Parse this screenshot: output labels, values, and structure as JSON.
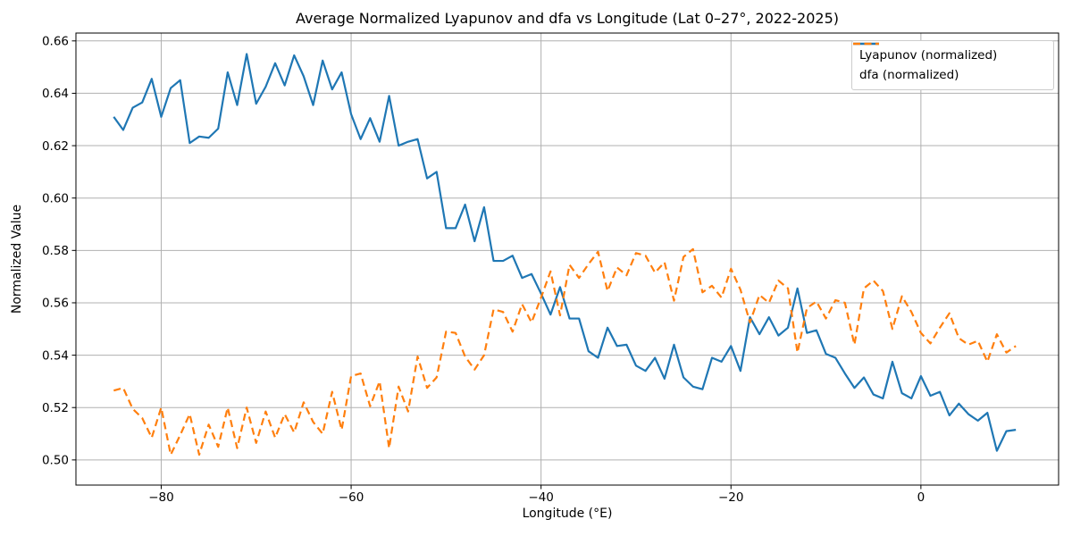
{
  "chart_data": {
    "type": "line",
    "title": "Average Normalized Lyapunov and dfa vs Longitude (Lat 0–27°, 2022-2025)",
    "xlabel": "Longitude (°E)",
    "ylabel": "Normalized Value",
    "grid": true,
    "legend_position": "upper right",
    "xlim": [
      -88.98,
      14.5
    ],
    "ylim": [
      0.4904,
      0.663
    ],
    "xticks": {
      "values": [
        -80,
        -60,
        -40,
        -20,
        0
      ],
      "labels": [
        "−80",
        "−60",
        "−40",
        "−20",
        "0"
      ]
    },
    "yticks": {
      "values": [
        0.5,
        0.52,
        0.54,
        0.56,
        0.58,
        0.6,
        0.62,
        0.64,
        0.66
      ],
      "labels": [
        "0.50",
        "0.52",
        "0.54",
        "0.56",
        "0.58",
        "0.60",
        "0.62",
        "0.64",
        "0.66"
      ]
    },
    "x": [
      -85,
      -84,
      -83,
      -82,
      -81,
      -80,
      -79,
      -78,
      -77,
      -76,
      -75,
      -74,
      -73,
      -72,
      -71,
      -70,
      -69,
      -68,
      -67,
      -66,
      -65,
      -64,
      -63,
      -62,
      -61,
      -60,
      -59,
      -58,
      -57,
      -56,
      -55,
      -54,
      -53,
      -52,
      -51,
      -50,
      -49,
      -48,
      -47,
      -46,
      -45,
      -44,
      -43,
      -42,
      -41,
      -40,
      -39,
      -38,
      -37,
      -36,
      -35,
      -34,
      -33,
      -32,
      -31,
      -30,
      -29,
      -28,
      -27,
      -26,
      -25,
      -24,
      -23,
      -22,
      -21,
      -20,
      -19,
      -18,
      -17,
      -16,
      -15,
      -14,
      -13,
      -12,
      -11,
      -10,
      -9,
      -8,
      -7,
      -6,
      -5,
      -4,
      -3,
      -2,
      -1,
      0,
      1,
      2,
      3,
      4,
      5,
      6,
      7,
      8,
      9,
      10
    ],
    "series": [
      {
        "name": "Lyapunov (normalized)",
        "color": "#1f77b4",
        "style": "solid",
        "values": [
          0.631,
          0.626,
          0.6345,
          0.6365,
          0.6455,
          0.631,
          0.642,
          0.645,
          0.621,
          0.6235,
          0.623,
          0.6265,
          0.648,
          0.6355,
          0.655,
          0.636,
          0.6425,
          0.6515,
          0.643,
          0.6545,
          0.6465,
          0.6355,
          0.6525,
          0.6415,
          0.648,
          0.632,
          0.6225,
          0.6305,
          0.6215,
          0.639,
          0.62,
          0.6215,
          0.6225,
          0.6075,
          0.61,
          0.5885,
          0.5885,
          0.5975,
          0.5835,
          0.5965,
          0.576,
          0.576,
          0.578,
          0.5695,
          0.571,
          0.5635,
          0.5555,
          0.566,
          0.554,
          0.554,
          0.5415,
          0.539,
          0.5505,
          0.5435,
          0.544,
          0.536,
          0.534,
          0.539,
          0.531,
          0.544,
          0.5315,
          0.528,
          0.527,
          0.539,
          0.5375,
          0.5435,
          0.534,
          0.5545,
          0.548,
          0.5545,
          0.5475,
          0.5505,
          0.5655,
          0.5485,
          0.5495,
          0.5405,
          0.539,
          0.533,
          0.5275,
          0.5315,
          0.525,
          0.5235,
          0.5375,
          0.5255,
          0.5235,
          0.532,
          0.5245,
          0.526,
          0.517,
          0.5215,
          0.5175,
          0.515,
          0.518,
          0.5035,
          0.511,
          0.5115
        ]
      },
      {
        "name": "dfa (normalized)",
        "color": "#ff7f0e",
        "style": "dashed",
        "values": [
          0.5265,
          0.5275,
          0.5195,
          0.516,
          0.5085,
          0.52,
          0.502,
          0.5095,
          0.5175,
          0.502,
          0.5135,
          0.505,
          0.52,
          0.5045,
          0.52,
          0.5065,
          0.5185,
          0.5085,
          0.5175,
          0.5105,
          0.522,
          0.5145,
          0.51,
          0.526,
          0.5115,
          0.532,
          0.533,
          0.5205,
          0.53,
          0.5045,
          0.528,
          0.5185,
          0.5395,
          0.5275,
          0.5315,
          0.549,
          0.5485,
          0.5395,
          0.5345,
          0.54,
          0.5575,
          0.5565,
          0.549,
          0.5595,
          0.5525,
          0.562,
          0.572,
          0.5552,
          0.5745,
          0.5695,
          0.5748,
          0.5795,
          0.5645,
          0.5735,
          0.5705,
          0.579,
          0.578,
          0.5715,
          0.5755,
          0.5608,
          0.5775,
          0.5805,
          0.564,
          0.5665,
          0.562,
          0.573,
          0.565,
          0.5525,
          0.563,
          0.56,
          0.5685,
          0.5655,
          0.541,
          0.558,
          0.5605,
          0.554,
          0.561,
          0.56,
          0.544,
          0.5655,
          0.5685,
          0.5645,
          0.55,
          0.5625,
          0.5565,
          0.5485,
          0.5445,
          0.5505,
          0.556,
          0.5465,
          0.544,
          0.5455,
          0.5375,
          0.548,
          0.541,
          0.5435
        ]
      }
    ],
    "colors": {
      "grid": "#b0b0b0",
      "axis": "#000000",
      "background": "#ffffff",
      "legend_border": "#cccccc"
    }
  }
}
